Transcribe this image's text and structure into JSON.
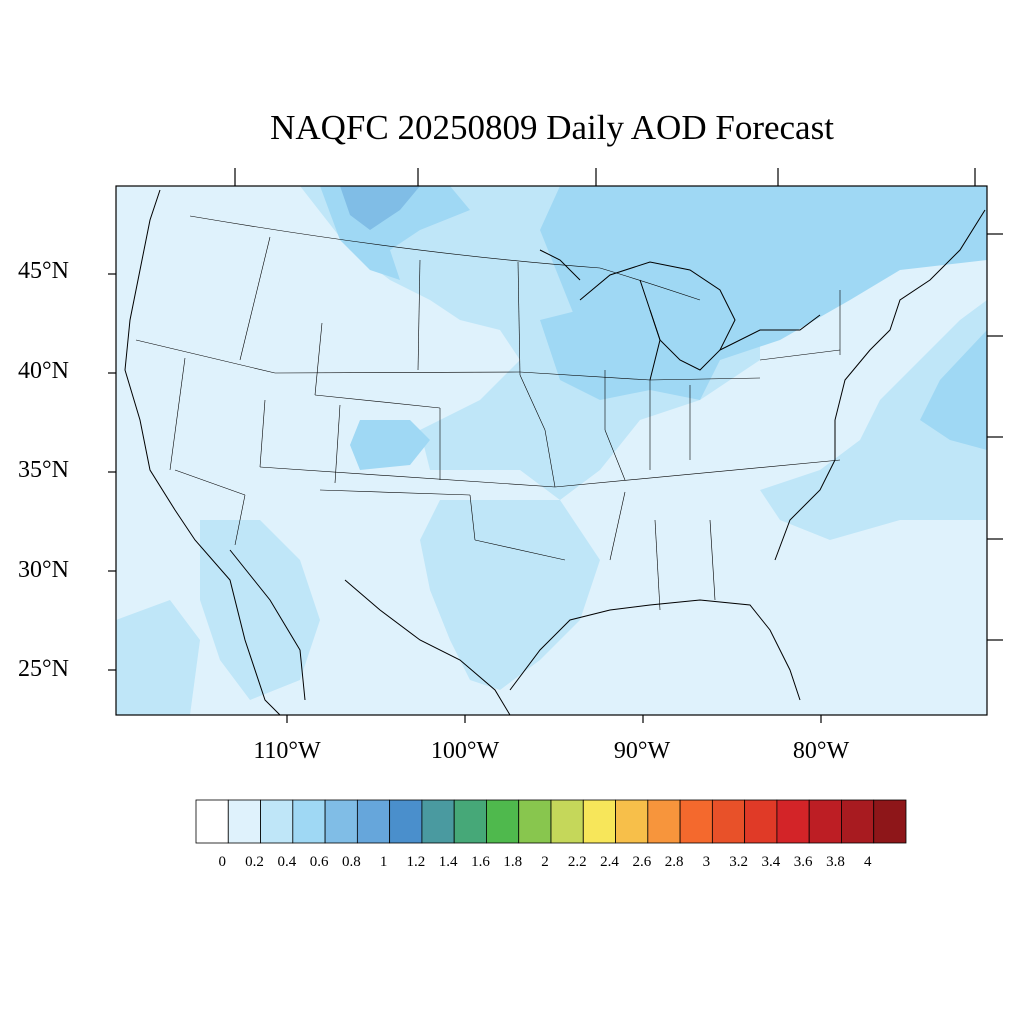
{
  "title": "NAQFC 20250809 Daily AOD Forecast",
  "lat_labels": [
    "45°N",
    "40°N",
    "35°N",
    "30°N",
    "25°N"
  ],
  "lon_labels": [
    "110°W",
    "100°W",
    "90°W",
    "80°W"
  ],
  "colorbar": {
    "labels": [
      "0",
      "0.2",
      "0.4",
      "0.6",
      "0.8",
      "1",
      "1.2",
      "1.4",
      "1.6",
      "1.8",
      "2",
      "2.2",
      "2.4",
      "2.6",
      "2.8",
      "3",
      "3.2",
      "3.4",
      "3.6",
      "3.8",
      "4"
    ],
    "colors": [
      "#ffffff",
      "#dff2fc",
      "#bfe6f8",
      "#9fd8f4",
      "#80bde6",
      "#66a6db",
      "#4a8fcc",
      "#4a9aa0",
      "#46a878",
      "#4fb94d",
      "#88c64e",
      "#c5d75a",
      "#f7e65a",
      "#f7bf4a",
      "#f7953c",
      "#f4692d",
      "#e85129",
      "#e03a27",
      "#d32428",
      "#bd1e24",
      "#a81b20",
      "#8e1619"
    ]
  },
  "map": {
    "background_color": "#dff2fc",
    "levels": {
      "low": "#dff2fc",
      "mid": "#bfe6f8",
      "high": "#9fd8f4",
      "higher": "#80bde6",
      "peak": "#66a6db"
    }
  }
}
